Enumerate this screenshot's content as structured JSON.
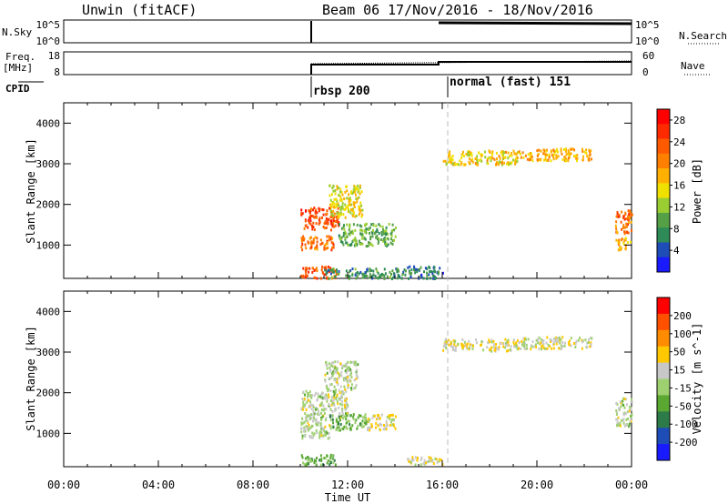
{
  "header": {
    "station": "Unwin (fitACF)",
    "beam": "Beam 06",
    "date_range": "17/Nov/2016 - 18/Nov/2016"
  },
  "top_panels": {
    "nsky_label": "N.Sky",
    "nsky_ticks": [
      "10^5",
      "10^0"
    ],
    "nsky_ticks_right": [
      "10^5",
      "10^0"
    ],
    "nsearch_label": "N.Search",
    "freq_label_line1": "Freq.",
    "freq_label_line2": "[MHz]",
    "freq_ticks": [
      "18",
      "8"
    ],
    "nave_ticks": [
      "60",
      "0"
    ],
    "nave_label": "Nave",
    "cpid_label": "CPID",
    "cpid_events": [
      {
        "time": 10.0,
        "label": "rbsp 200"
      },
      {
        "time": 16.0,
        "label": "normal (fast) 151"
      }
    ]
  },
  "x_axis": {
    "label": "Time UT",
    "ticks": [
      "00:00",
      "04:00",
      "08:00",
      "12:00",
      "16:00",
      "20:00",
      "00:00"
    ],
    "range_hours": [
      0,
      24
    ]
  },
  "colors": {
    "power_scale": [
      "#1a1aff",
      "#1f4db8",
      "#2e8b57",
      "#55a046",
      "#9acd32",
      "#f0e000",
      "#ffb000",
      "#ff8000",
      "#ff5a00",
      "#ff2a00",
      "#ff0000"
    ],
    "velocity_scale": [
      "#ff0000",
      "#ff5000",
      "#ff8c00",
      "#ffc800",
      "#c8c8c8",
      "#9fd070",
      "#5aa832",
      "#2e7b4a",
      "#1f4db8",
      "#1a1aff"
    ]
  },
  "chart_data": [
    {
      "type": "heatmap",
      "title": "",
      "xlabel": "",
      "ylabel": "Slant Range [km]",
      "xlim": [
        0,
        24
      ],
      "ylim": [
        180,
        4500
      ],
      "yticks": [
        "1000",
        "2000",
        "3000",
        "4000"
      ],
      "colorbar": {
        "label": "Power [dB]",
        "ticks": [
          "4",
          "8",
          "12",
          "16",
          "20",
          "24",
          "28"
        ],
        "range": [
          0,
          30
        ]
      },
      "regions": [
        {
          "t0": 10.0,
          "t1": 11.6,
          "r0": 1400,
          "r1": 1950,
          "value": 24
        },
        {
          "t0": 10.0,
          "t1": 11.4,
          "r0": 900,
          "r1": 1250,
          "value": 22
        },
        {
          "t0": 11.2,
          "t1": 12.6,
          "r0": 1700,
          "r1": 2500,
          "value": 15
        },
        {
          "t0": 11.6,
          "t1": 14.0,
          "r0": 1000,
          "r1": 1550,
          "value": 10
        },
        {
          "t0": 10.0,
          "t1": 11.5,
          "r0": 200,
          "r1": 500,
          "value": 24
        },
        {
          "t0": 11.0,
          "t1": 14.5,
          "r0": 200,
          "r1": 450,
          "value": 8
        },
        {
          "t0": 14.5,
          "t1": 16.0,
          "r0": 200,
          "r1": 500,
          "value": 6
        },
        {
          "t0": 16.0,
          "t1": 19.2,
          "r0": 3000,
          "r1": 3350,
          "value": 16
        },
        {
          "t0": 19.2,
          "t1": 22.3,
          "r0": 3100,
          "r1": 3400,
          "value": 18
        },
        {
          "t0": 23.3,
          "t1": 24.0,
          "r0": 1300,
          "r1": 1900,
          "value": 22
        },
        {
          "t0": 23.3,
          "t1": 24.0,
          "r0": 900,
          "r1": 1200,
          "value": 18
        }
      ]
    },
    {
      "type": "heatmap",
      "title": "",
      "xlabel": "Time UT",
      "ylabel": "Slant Range [km]",
      "xlim": [
        0,
        24
      ],
      "ylim": [
        180,
        4500
      ],
      "yticks": [
        "1000",
        "2000",
        "3000",
        "4000"
      ],
      "colorbar": {
        "label": "Velocity [m s^-1]",
        "ticks": [
          "200",
          "100",
          "50",
          "15",
          "-15",
          "-50",
          "-100",
          "-200"
        ],
        "range": [
          -250,
          250
        ]
      },
      "regions": [
        {
          "t0": 10.0,
          "t1": 12.0,
          "r0": 1400,
          "r1": 2100,
          "value": 0
        },
        {
          "t0": 11.0,
          "t1": 12.4,
          "r0": 2100,
          "r1": 2800,
          "value": 0
        },
        {
          "t0": 10.0,
          "t1": 11.2,
          "r0": 900,
          "r1": 1400,
          "value": 0
        },
        {
          "t0": 11.2,
          "t1": 12.8,
          "r0": 1100,
          "r1": 1500,
          "value": -60
        },
        {
          "t0": 12.8,
          "t1": 14.0,
          "r0": 1100,
          "r1": 1500,
          "value": 40
        },
        {
          "t0": 10.0,
          "t1": 11.5,
          "r0": 250,
          "r1": 500,
          "value": -80
        },
        {
          "t0": 14.5,
          "t1": 16.0,
          "r0": 250,
          "r1": 450,
          "value": 30
        },
        {
          "t0": 16.0,
          "t1": 19.2,
          "r0": 3050,
          "r1": 3350,
          "value": 35
        },
        {
          "t0": 19.2,
          "t1": 22.3,
          "r0": 3100,
          "r1": 3400,
          "value": 25
        },
        {
          "t0": 23.3,
          "t1": 24.0,
          "r0": 1200,
          "r1": 1900,
          "value": 0
        }
      ]
    }
  ]
}
